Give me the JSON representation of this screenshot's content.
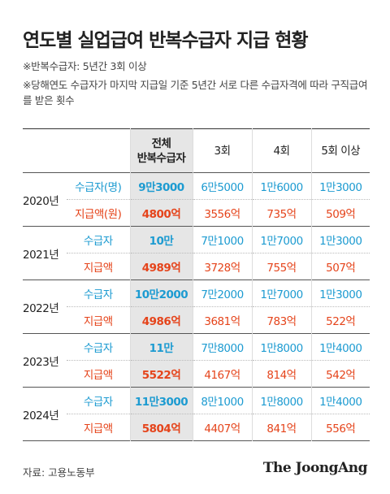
{
  "title": "연도별 실업급여 반복수급자 지급 현황",
  "notes": [
    "※반복수급자: 5년간 3회 이상",
    "※당해연도 수급자가 마지막 지급일 기준 5년간 서로 다른 수급자격에 따라 구직급여를 받은 횟수"
  ],
  "table": {
    "header": [
      "전체\n반복수급자",
      "3회",
      "4회",
      "5회 이상"
    ],
    "groups": [
      {
        "year": "2020년",
        "rows": [
          [
            "수급자(명)",
            "9만3000",
            "6만5000",
            "1만6000",
            "1만3000"
          ],
          [
            "지급액(원)",
            "4800억",
            "3556억",
            "735억",
            "509억"
          ]
        ]
      },
      {
        "year": "2021년",
        "rows": [
          [
            "수급자",
            "10만",
            "7만1000",
            "1만7000",
            "1만3000"
          ],
          [
            "지급액",
            "4989억",
            "3728억",
            "755억",
            "507억"
          ]
        ]
      },
      {
        "year": "2022년",
        "rows": [
          [
            "수급자",
            "10만2000",
            "7만2000",
            "1만7000",
            "1만3000"
          ],
          [
            "지급액",
            "4986억",
            "3681억",
            "783억",
            "522억"
          ]
        ]
      },
      {
        "year": "2023년",
        "rows": [
          [
            "수급자",
            "11만",
            "7만8000",
            "1만8000",
            "1만4000"
          ],
          [
            "지급액",
            "5522억",
            "4167억",
            "814억",
            "542억"
          ]
        ]
      },
      {
        "year": "2024년",
        "rows": [
          [
            "수급자",
            "11만3000",
            "8만1000",
            "1만8000",
            "1만4000"
          ],
          [
            "지급액",
            "5804억",
            "4407억",
            "841억",
            "556억"
          ]
        ]
      }
    ]
  },
  "source": "자료: 고용노동부",
  "brand": "The JoongAng"
}
